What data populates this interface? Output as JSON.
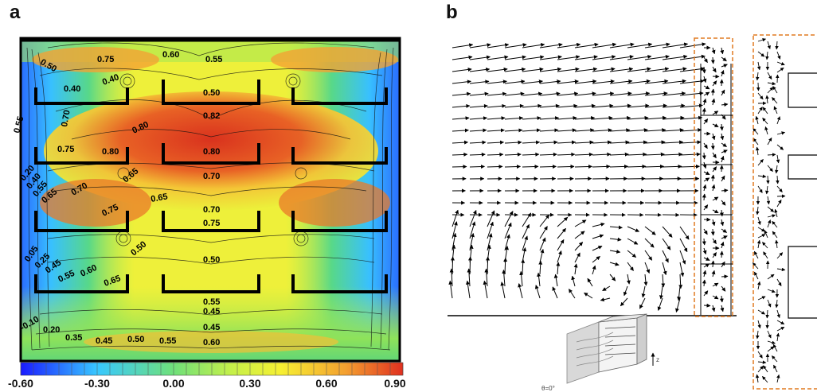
{
  "panel_a": {
    "label": "a",
    "colorbar": {
      "ticks": [
        "-0.60",
        "-0.30",
        "0.00",
        "0.30",
        "0.60",
        "0.90"
      ],
      "range": [
        -0.6,
        0.9
      ],
      "colors": [
        "#1a1aff",
        "#38c8ff",
        "#6fe07a",
        "#c4f04a",
        "#f6f032",
        "#f4a030",
        "#e03020"
      ]
    },
    "contour_labels": [
      "0.50",
      "0.75",
      "0.60",
      "0.55",
      "0.40",
      "0.40",
      "0.50",
      "0.55",
      "0.70",
      "0.82",
      "0.80",
      "0.75",
      "0.80",
      "0.80",
      "0.65",
      "0.70",
      "0.20",
      "0.40",
      "0.55",
      "0.65",
      "0.70",
      "0.65",
      "0.70",
      "0.75",
      "0.75",
      "0.05",
      "0.25",
      "0.45",
      "0.50",
      "0.50",
      "0.55",
      "0.60",
      "0.65",
      "0.55",
      "0.45",
      "-0.10",
      "0.20",
      "0.35",
      "0.45",
      "0.50",
      "0.55",
      "0.45",
      "0.60"
    ]
  },
  "panel_b": {
    "label": "b",
    "inset_axis_label": "z",
    "inset_angle_label": "θ=0°"
  }
}
